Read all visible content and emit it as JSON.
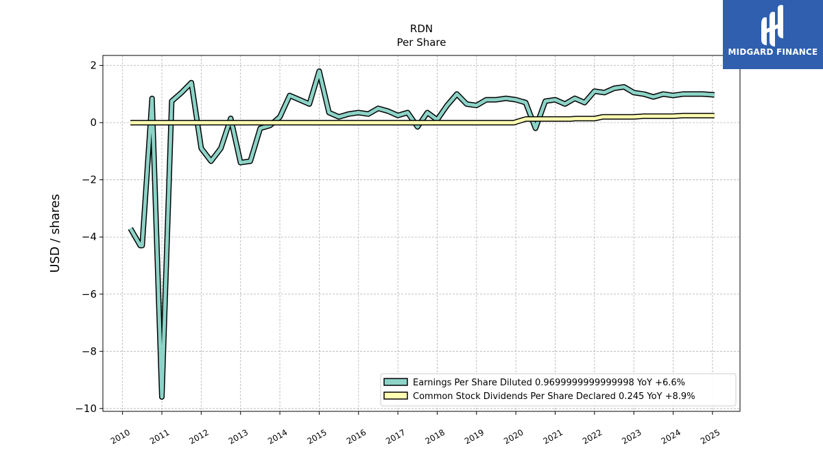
{
  "chart_data": {
    "type": "line",
    "title": "RDN",
    "subtitle": "Per  Share",
    "ylabel": "USD / shares",
    "xlabel": "",
    "xlim": [
      2009.5,
      2025.7
    ],
    "ylim": [
      -10.1,
      2.35
    ],
    "yticks": [
      2,
      0,
      -2,
      -4,
      -6,
      -8,
      -10
    ],
    "ytick_labels": [
      "2",
      "0",
      "−2",
      "−4",
      "−6",
      "−8",
      "−10"
    ],
    "xticks": [
      2010,
      2011,
      2012,
      2013,
      2014,
      2015,
      2016,
      2017,
      2018,
      2019,
      2020,
      2021,
      2022,
      2023,
      2024,
      2025
    ],
    "xtick_labels": [
      "2010",
      "2011",
      "2012",
      "2013",
      "2014",
      "2015",
      "2016",
      "2017",
      "2018",
      "2019",
      "2020",
      "2021",
      "2022",
      "2023",
      "2024",
      "2025"
    ],
    "grid": true,
    "legend_position": "lower-right",
    "series": [
      {
        "name": "Earnings Per Share Diluted",
        "legend_label": "Earnings Per Share Diluted  0.9699999999999998 YoY +6.6%",
        "color": "#8dd3c7",
        "x": [
          2010.2,
          2010.45,
          2010.5,
          2010.75,
          2011.0,
          2011.25,
          2011.5,
          2011.75,
          2012.0,
          2012.25,
          2012.5,
          2012.75,
          2013.0,
          2013.25,
          2013.5,
          2013.75,
          2014.0,
          2014.25,
          2014.5,
          2014.75,
          2015.0,
          2015.25,
          2015.5,
          2015.75,
          2016.0,
          2016.25,
          2016.5,
          2016.75,
          2017.0,
          2017.25,
          2017.5,
          2017.75,
          2018.0,
          2018.25,
          2018.5,
          2018.75,
          2019.0,
          2019.25,
          2019.5,
          2019.75,
          2020.0,
          2020.25,
          2020.5,
          2020.75,
          2021.0,
          2021.25,
          2021.5,
          2021.75,
          2022.0,
          2022.25,
          2022.5,
          2022.75,
          2023.0,
          2023.25,
          2023.5,
          2023.75,
          2024.0,
          2024.25,
          2024.5,
          2024.75,
          2025.05
        ],
        "values": [
          -3.7,
          -4.3,
          -4.3,
          0.85,
          -9.6,
          0.75,
          1.05,
          1.4,
          -0.9,
          -1.35,
          -0.9,
          0.15,
          -1.4,
          -1.35,
          -0.2,
          -0.1,
          0.2,
          0.95,
          0.8,
          0.65,
          1.8,
          0.35,
          0.2,
          0.3,
          0.35,
          0.3,
          0.5,
          0.4,
          0.25,
          0.35,
          -0.15,
          0.35,
          0.1,
          0.6,
          1.0,
          0.65,
          0.6,
          0.8,
          0.8,
          0.85,
          0.8,
          0.7,
          -0.2,
          0.75,
          0.8,
          0.65,
          0.85,
          0.7,
          1.1,
          1.05,
          1.2,
          1.25,
          1.05,
          1.0,
          0.9,
          1.0,
          0.95,
          1.0,
          1.0,
          1.0,
          0.97
        ]
      },
      {
        "name": "Common Stock Dividends Per Share Declared",
        "legend_label": "Common Stock Dividends Per Share Declared  0.245 YoY +8.9%",
        "color": "#ffffb3",
        "x": [
          2010.2,
          2010.5,
          2011.0,
          2011.5,
          2012.0,
          2012.5,
          2013.0,
          2013.5,
          2014.0,
          2014.5,
          2015.0,
          2015.5,
          2016.0,
          2016.5,
          2017.0,
          2017.5,
          2018.0,
          2018.5,
          2019.0,
          2019.5,
          2019.95,
          2020.25,
          2020.5,
          2021.0,
          2021.4,
          2021.5,
          2021.9,
          2022.0,
          2022.2,
          2022.5,
          2022.9,
          2023.0,
          2023.25,
          2023.9,
          2024.0,
          2024.25,
          2025.05
        ],
        "values": [
          0.0,
          0.0,
          0.0,
          0.0,
          0.0,
          0.0,
          0.0,
          0.0,
          0.0,
          0.0,
          0.0,
          0.0,
          0.0,
          0.0,
          0.0,
          0.0,
          0.0,
          0.0,
          0.0,
          0.0,
          0.0,
          0.125,
          0.125,
          0.125,
          0.125,
          0.14,
          0.14,
          0.14,
          0.2,
          0.2,
          0.2,
          0.2,
          0.225,
          0.225,
          0.225,
          0.245,
          0.245
        ]
      }
    ]
  },
  "logo": {
    "text": "MIDGARD FINANCE",
    "background_color": "#2f5fae"
  }
}
